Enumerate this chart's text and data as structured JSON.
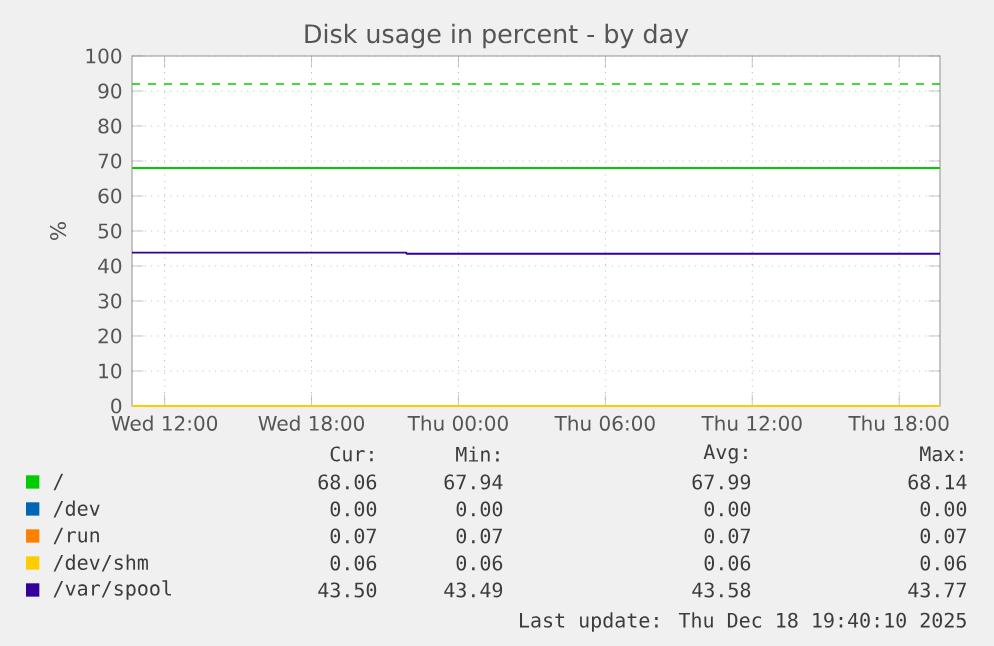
{
  "chart_data": {
    "type": "line",
    "title": "Disk usage in percent - by day",
    "ylabel": "%",
    "xlim": [
      "2025-12-17T10:40",
      "2025-12-18T19:40"
    ],
    "ylim": [
      0,
      100
    ],
    "xticks": [
      {
        "value": "2025-12-17T12:00",
        "label": "Wed 12:00"
      },
      {
        "value": "2025-12-17T18:00",
        "label": "Wed 18:00"
      },
      {
        "value": "2025-12-18T00:00",
        "label": "Thu 00:00"
      },
      {
        "value": "2025-12-18T06:00",
        "label": "Thu 06:00"
      },
      {
        "value": "2025-12-18T12:00",
        "label": "Thu 12:00"
      },
      {
        "value": "2025-12-18T18:00",
        "label": "Thu 18:00"
      }
    ],
    "yticks": [
      0,
      10,
      20,
      30,
      40,
      50,
      60,
      70,
      80,
      90,
      100
    ],
    "grid": true,
    "legend": "bottom",
    "marker": "none",
    "line_style": "solid",
    "series": [
      {
        "name": "/",
        "color": "#00cc00",
        "x": [
          "2025-12-17T10:40",
          "2025-12-18T19:40"
        ],
        "values": [
          68,
          68
        ]
      },
      {
        "name": "/dev",
        "color": "#0066b3",
        "values": [
          null
        ]
      },
      {
        "name": "/run",
        "color": "#ff8000",
        "values": [
          null
        ]
      },
      {
        "name": "/dev/shm",
        "color": "#ffcc00",
        "x": [
          "2025-12-17T10:40",
          "2025-12-18T19:40"
        ],
        "values": [
          0,
          0
        ]
      },
      {
        "name": "/var/spool",
        "color": "#330099",
        "x": [
          "2025-12-17T10:40",
          "2025-12-17T21:52",
          "2025-12-17T21:53",
          "2025-12-18T19:40"
        ],
        "values": [
          43.8,
          43.8,
          43.5,
          43.5
        ]
      }
    ],
    "ref_lines": [
      {
        "axis": "y",
        "value": 92,
        "color": "#00cc00",
        "line_style": "dashed"
      }
    ],
    "annotations": [
      "Cur:",
      "Min:",
      "Avg:",
      "Max:",
      "68.06",
      "67.94",
      "67.99",
      "68.14",
      "0.00",
      "0.00",
      "0.00",
      "0.00",
      "0.07",
      "0.07",
      "0.07",
      "0.07",
      "0.06",
      "0.06",
      "0.06",
      "0.06",
      "43.50",
      "43.49",
      "43.58",
      "43.77",
      "Last update: Thu Dec 18 19:40:10 2025"
    ]
  }
}
